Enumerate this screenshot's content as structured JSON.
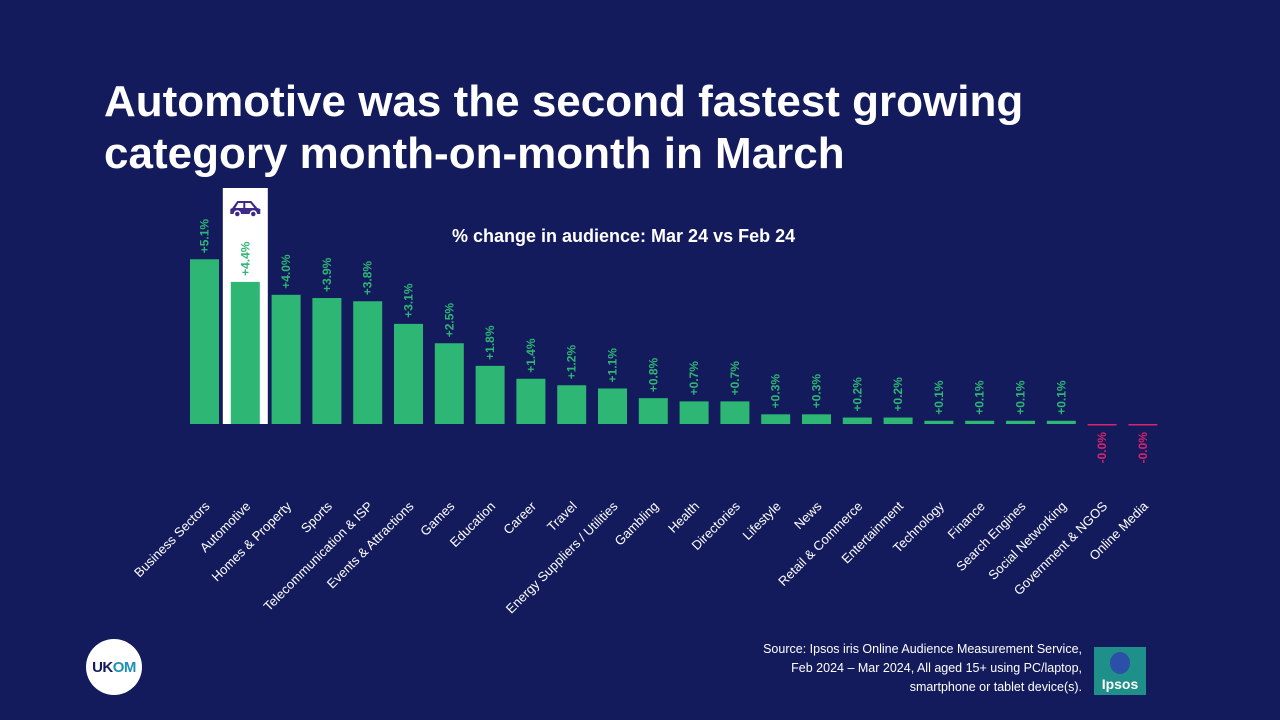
{
  "title": "Automotive was the second fastest growing category month-on-month in March",
  "subtitle": "% change in audience:  Mar 24 vs Feb 24",
  "highlight_icon": "car-icon",
  "source": "Source: Ipsos iris Online Audience Measurement Service, Feb 2024 – Mar 2024, All aged 15+ using PC/laptop, smartphone or tablet device(s).",
  "logos": {
    "ukom": "UKOM",
    "ipsos": "Ipsos"
  },
  "colors": {
    "background": "#141b5c",
    "positive": "#2db674",
    "negative": "#d6246e",
    "highlight_box": "#ffffff",
    "car_icon": "#3d2a8a"
  },
  "chart_data": {
    "type": "bar",
    "categories": [
      "Business Sectors",
      "Automotive",
      "Homes & Property",
      "Sports",
      "Telecommunication & ISP",
      "Events & Attractions",
      "Games",
      "Education",
      "Career",
      "Travel",
      "Energy Suppliers / Utilities",
      "Gambling",
      "Health",
      "Directories",
      "Lifestyle",
      "News",
      "Retail & Commerce",
      "Entertainment",
      "Technology",
      "Finance",
      "Search Engines",
      "Social Networking",
      "Government & NGOS",
      "Online Media"
    ],
    "values": [
      5.1,
      4.4,
      4.0,
      3.9,
      3.8,
      3.1,
      2.5,
      1.8,
      1.4,
      1.2,
      1.1,
      0.8,
      0.7,
      0.7,
      0.3,
      0.3,
      0.2,
      0.2,
      0.1,
      0.1,
      0.1,
      0.1,
      -0.0,
      -0.0
    ],
    "labels": [
      "+5.1%",
      "+4.4%",
      "+4.0%",
      "+3.9%",
      "+3.8%",
      "+3.1%",
      "+2.5%",
      "+1.8%",
      "+1.4%",
      "+1.2%",
      "+1.1%",
      "+0.8%",
      "+0.7%",
      "+0.7%",
      "+0.3%",
      "+0.3%",
      "+0.2%",
      "+0.2%",
      "+0.1%",
      "+0.1%",
      "+0.1%",
      "+0.1%",
      "-0.0%",
      "-0.0%"
    ],
    "highlight_category": "Automotive",
    "xlabel": "",
    "ylabel": "",
    "grid": false
  }
}
